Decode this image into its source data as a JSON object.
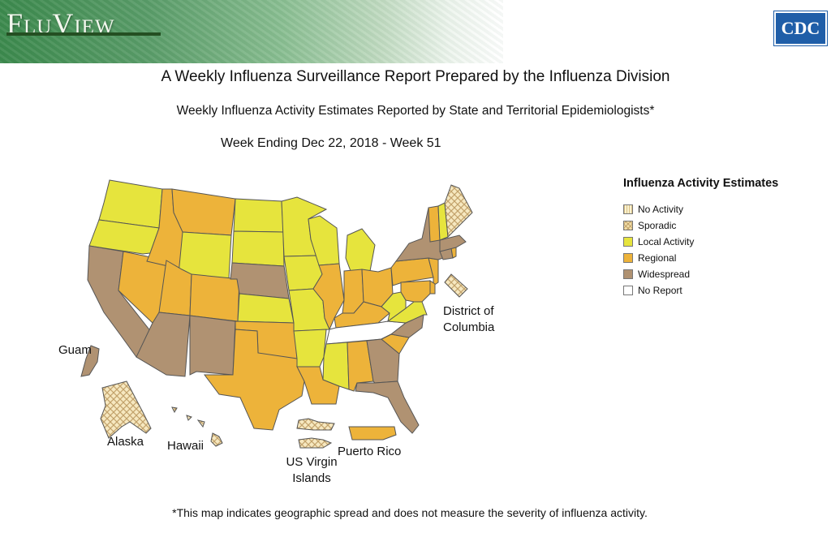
{
  "header": {
    "logo_text": "FluView",
    "agency_logo": "CDC"
  },
  "titles": {
    "main": "A Weekly Influenza Surveillance Report Prepared by the Influenza Division",
    "sub": "Weekly Influenza Activity Estimates Reported by State and Territorial Epidemiologists*",
    "week": "Week Ending Dec 22, 2018 - Week 51"
  },
  "legend": {
    "title": "Influenza Activity Estimates",
    "items": [
      {
        "label": "No Activity",
        "color": "#fbf3d0",
        "pattern": "stripe"
      },
      {
        "label": "Sporadic",
        "color": "#f2dfa8",
        "pattern": "crosshatch"
      },
      {
        "label": "Local Activity",
        "color": "#e6e43d"
      },
      {
        "label": "Regional",
        "color": "#edb33a"
      },
      {
        "label": "Widespread",
        "color": "#b09272"
      },
      {
        "label": "No Report",
        "color": "#ffffff"
      }
    ]
  },
  "colors": {
    "local": "#e6e43d",
    "regional": "#edb33a",
    "widespread": "#b09272",
    "sporadic": "#f2dfa8",
    "noreport": "#ffffff",
    "border": "#555555"
  },
  "map_labels": {
    "dc_line1": "District of",
    "dc_line2": "Columbia",
    "guam": "Guam",
    "alaska": "Alaska",
    "hawaii": "Hawaii",
    "usvi_line1": "US Virgin",
    "usvi_line2": "Islands",
    "puerto_rico": "Puerto Rico"
  },
  "state_activity": {
    "WA": "Local Activity",
    "OR": "Local Activity",
    "CA": "Widespread",
    "NV": "Regional",
    "ID": "Regional",
    "MT": "Regional",
    "WY": "Local Activity",
    "UT": "Regional",
    "AZ": "Widespread",
    "CO": "Regional",
    "NM": "Widespread",
    "ND": "Local Activity",
    "SD": "Local Activity",
    "NE": "Widespread",
    "KS": "Local Activity",
    "OK": "Regional",
    "TX": "Regional",
    "MN": "Local Activity",
    "IA": "Local Activity",
    "MO": "Local Activity",
    "AR": "Local Activity",
    "LA": "Regional",
    "WI": "Local Activity",
    "IL": "Regional",
    "MI": "Local Activity",
    "IN": "Regional",
    "OH": "Regional",
    "KY": "Regional",
    "TN": "No Report",
    "MS": "Local Activity",
    "AL": "Regional",
    "GA": "Widespread",
    "FL": "Widespread",
    "SC": "Regional",
    "NC": "Widespread",
    "VA": "Local Activity",
    "WV": "Local Activity",
    "PA": "Regional",
    "NY": "Widespread",
    "NJ": "Regional",
    "MD": "Regional",
    "DE": "Regional",
    "CT": "Widespread",
    "RI": "Regional",
    "MA": "Widespread",
    "VT": "Regional",
    "NH": "Local Activity",
    "ME": "Sporadic",
    "DC": "Sporadic",
    "AK": "Sporadic",
    "HI": "Sporadic",
    "Guam": "Widespread",
    "Puerto Rico": "Regional",
    "US Virgin Islands": "Sporadic"
  },
  "footnote": "*This map indicates geographic spread and does not measure the severity of influenza activity."
}
